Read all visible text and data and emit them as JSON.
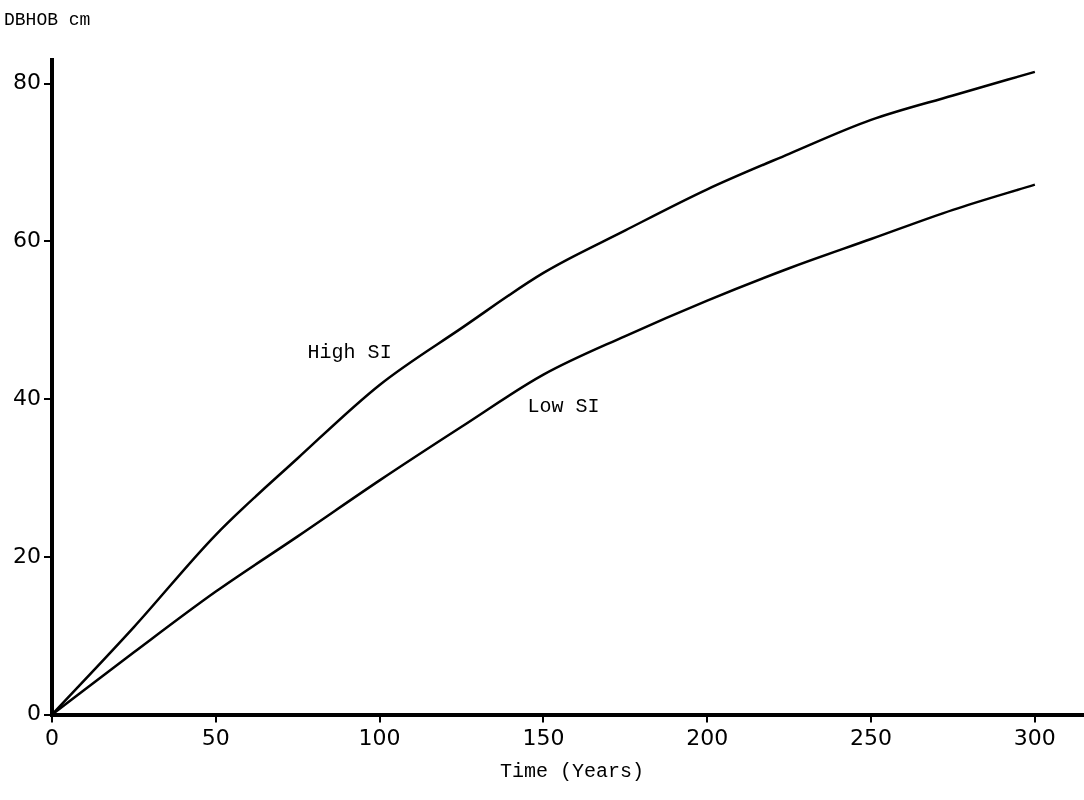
{
  "chart_data": {
    "type": "line",
    "xlabel": "Time (Years)",
    "ylabel": "DBHOB cm",
    "x": [
      0,
      25,
      50,
      75,
      100,
      125,
      150,
      175,
      200,
      225,
      250,
      275,
      300
    ],
    "series": [
      {
        "name": "High SI",
        "color": "#000000",
        "values": [
          0,
          11.1,
          22.8,
          32.5,
          41.8,
          49,
          56,
          61.4,
          66.6,
          71.1,
          75.4,
          78.5,
          81.5
        ]
      },
      {
        "name": "Low SI",
        "color": "#000000",
        "values": [
          0,
          7.9,
          15.6,
          22.6,
          29.7,
          36.5,
          43.1,
          48,
          52.5,
          56.6,
          60.3,
          64,
          67.2
        ]
      }
    ],
    "xlim": [
      0,
      315
    ],
    "xticks": [
      0,
      50,
      100,
      150,
      200,
      250,
      300
    ],
    "ylim": [
      0,
      83
    ],
    "yticks": [
      0,
      20,
      40,
      60,
      80
    ],
    "grid": false,
    "legend": false,
    "marker": "none",
    "line_style": "solid"
  }
}
